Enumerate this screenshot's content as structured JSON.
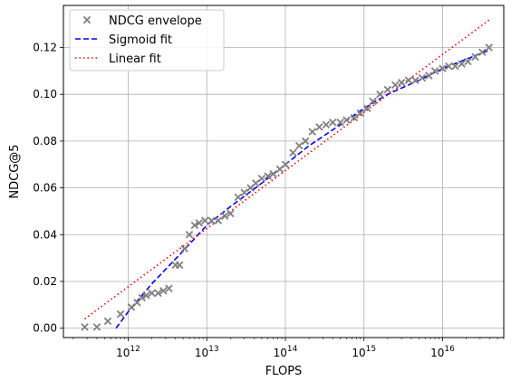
{
  "chart_data": {
    "type": "scatter",
    "title": "",
    "xlabel": "FLOPS",
    "ylabel": "NDCG@5",
    "xscale": "log",
    "xlim": [
      150000000000.0,
      6e+16
    ],
    "ylim": [
      -0.004,
      0.138
    ],
    "grid": true,
    "legend_position": "top-left",
    "x_ticks": [
      {
        "value": 1000000000000.0,
        "base": "10",
        "exp": "12"
      },
      {
        "value": 10000000000000.0,
        "base": "10",
        "exp": "13"
      },
      {
        "value": 100000000000000.0,
        "base": "10",
        "exp": "14"
      },
      {
        "value": 1000000000000000.0,
        "base": "10",
        "exp": "15"
      },
      {
        "value": 1e+16,
        "base": "10",
        "exp": "16"
      }
    ],
    "y_ticks": [
      {
        "value": 0.0,
        "label": "0.00"
      },
      {
        "value": 0.02,
        "label": "0.02"
      },
      {
        "value": 0.04,
        "label": "0.04"
      },
      {
        "value": 0.06,
        "label": "0.06"
      },
      {
        "value": 0.08,
        "label": "0.08"
      },
      {
        "value": 0.1,
        "label": "0.10"
      },
      {
        "value": 0.12,
        "label": "0.12"
      }
    ],
    "series": [
      {
        "name": "NDCG envelope",
        "kind": "scatter",
        "marker": "x",
        "color": "#808080",
        "x": [
          280000000000.0,
          400000000000.0,
          550000000000.0,
          800000000000.0,
          1100000000000.0,
          1300000000000.0,
          1500000000000.0,
          1700000000000.0,
          2000000000000.0,
          2400000000000.0,
          2800000000000.0,
          3300000000000.0,
          4000000000000.0,
          4500000000000.0,
          5200000000000.0,
          6000000000000.0,
          7000000000000.0,
          8000000000000.0,
          9500000000000.0,
          11500000000000.0,
          14000000000000.0,
          17000000000000.0,
          20000000000000.0,
          25000000000000.0,
          30000000000000.0,
          36000000000000.0,
          42000000000000.0,
          50000000000000.0,
          60000000000000.0,
          70000000000000.0,
          85000000000000.0,
          100000000000000.0,
          125000000000000.0,
          150000000000000.0,
          180000000000000.0,
          220000000000000.0,
          270000000000000.0,
          330000000000000.0,
          400000000000000.0,
          500000000000000.0,
          600000000000000.0,
          750000000000000.0,
          900000000000000.0,
          1100000000000000.0,
          1300000000000000.0,
          1600000000000000.0,
          2000000000000000.0,
          2500000000000000.0,
          3000000000000000.0,
          3700000000000000.0,
          4500000000000000.0,
          5500000000000000.0,
          6700000000000000.0,
          8000000000000000.0,
          1e+16,
          1.2e+16,
          1.45e+16,
          1.75e+16,
          2.1e+16,
          2.6e+16,
          3.2e+16,
          3.9e+16
        ],
        "y": [
          0.0005,
          0.0005,
          0.003,
          0.006,
          0.009,
          0.011,
          0.013,
          0.014,
          0.015,
          0.015,
          0.016,
          0.017,
          0.027,
          0.027,
          0.034,
          0.04,
          0.044,
          0.045,
          0.046,
          0.046,
          0.046,
          0.048,
          0.049,
          0.056,
          0.058,
          0.06,
          0.062,
          0.064,
          0.065,
          0.066,
          0.068,
          0.07,
          0.075,
          0.078,
          0.08,
          0.084,
          0.086,
          0.087,
          0.088,
          0.088,
          0.089,
          0.09,
          0.092,
          0.094,
          0.097,
          0.1,
          0.102,
          0.104,
          0.105,
          0.106,
          0.106,
          0.107,
          0.108,
          0.11,
          0.111,
          0.112,
          0.112,
          0.113,
          0.114,
          0.116,
          0.118,
          0.12
        ]
      },
      {
        "name": "Sigmoid fit",
        "kind": "line",
        "style": "dashed",
        "color": "#0000ff",
        "x": [
          700000000000.0,
          1000000000000.0,
          2000000000000.0,
          5000000000000.0,
          10000000000000.0,
          20000000000000.0,
          50000000000000.0,
          100000000000000.0,
          200000000000000.0,
          500000000000000.0,
          1000000000000000.0,
          2000000000000000.0,
          5000000000000000.0,
          1e+16,
          2e+16,
          4e+16
        ],
        "y": [
          0.0,
          0.007,
          0.019,
          0.033,
          0.044,
          0.052,
          0.062,
          0.07,
          0.078,
          0.087,
          0.094,
          0.1,
          0.106,
          0.111,
          0.115,
          0.119
        ]
      },
      {
        "name": "Linear fit",
        "kind": "line",
        "style": "dotted",
        "color": "#ff0000",
        "x": [
          280000000000.0,
          4e+16
        ],
        "y": [
          0.004,
          0.132
        ]
      }
    ]
  }
}
